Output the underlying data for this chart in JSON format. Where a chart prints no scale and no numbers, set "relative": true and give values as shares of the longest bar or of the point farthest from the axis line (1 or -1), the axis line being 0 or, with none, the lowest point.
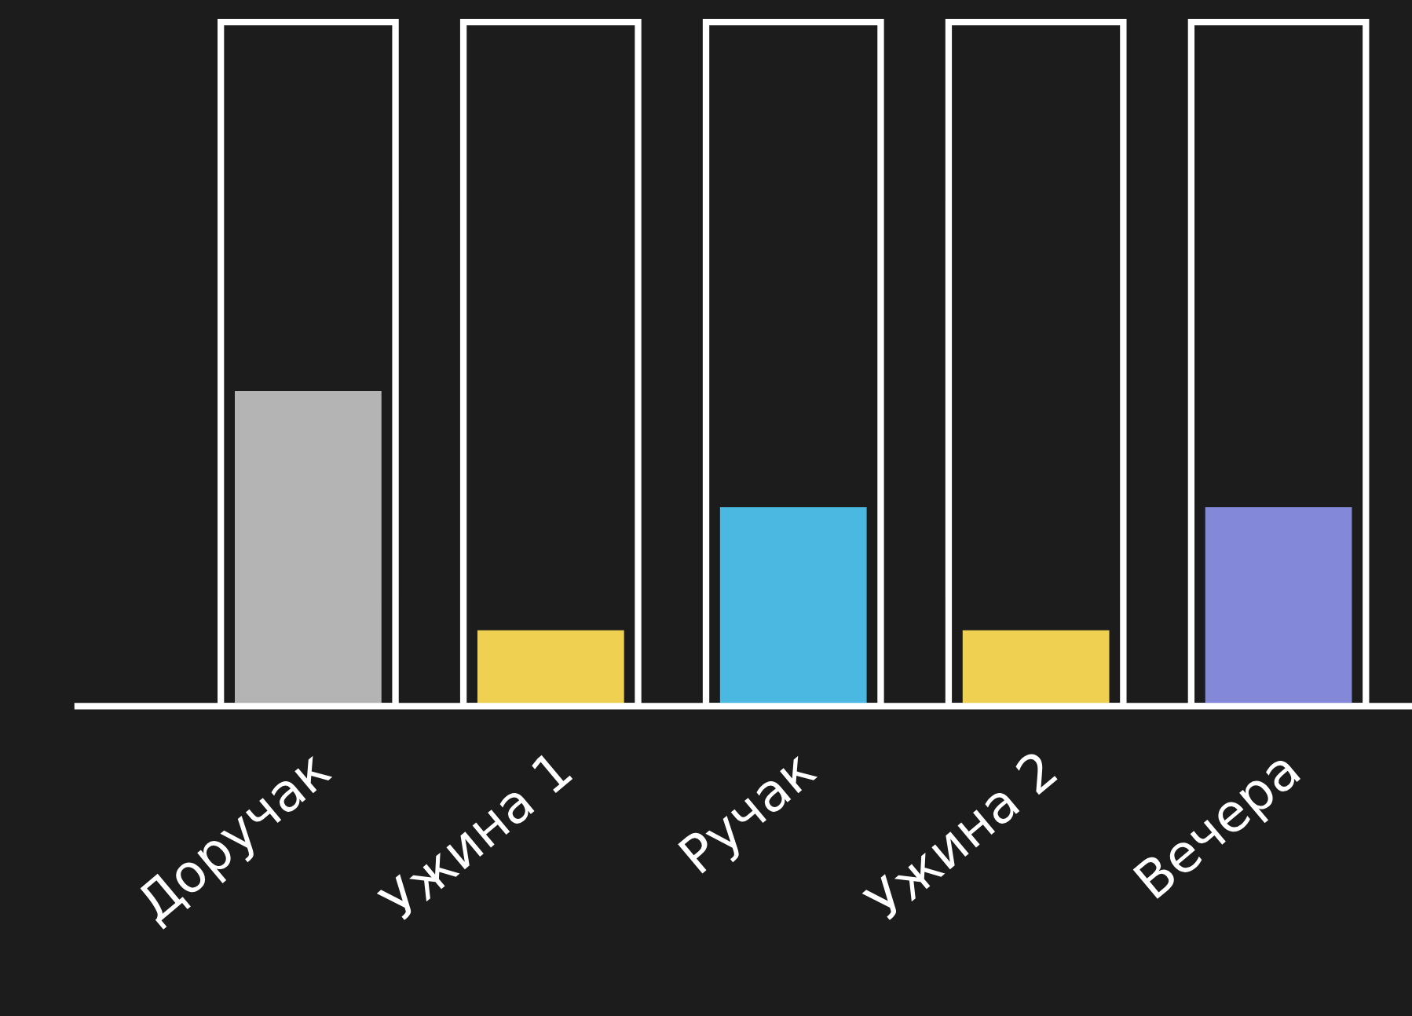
{
  "chart_data": {
    "type": "bar",
    "relative": true,
    "categories": [
      "Доручак",
      "Ужина 1",
      "Ручак",
      "Ужина 2",
      "Вечера"
    ],
    "series": [
      {
        "color": "#ffffff",
        "values": [
          1,
          1,
          1,
          1,
          1
        ]
      },
      {
        "colors": [
          "#b4b4b4",
          "#f0d050",
          "#4ab8e0",
          "#f0d050",
          "#8488d8"
        ],
        "values": [
          0.46,
          0.11,
          0.29,
          0.11,
          0.29
        ]
      }
    ]
  }
}
